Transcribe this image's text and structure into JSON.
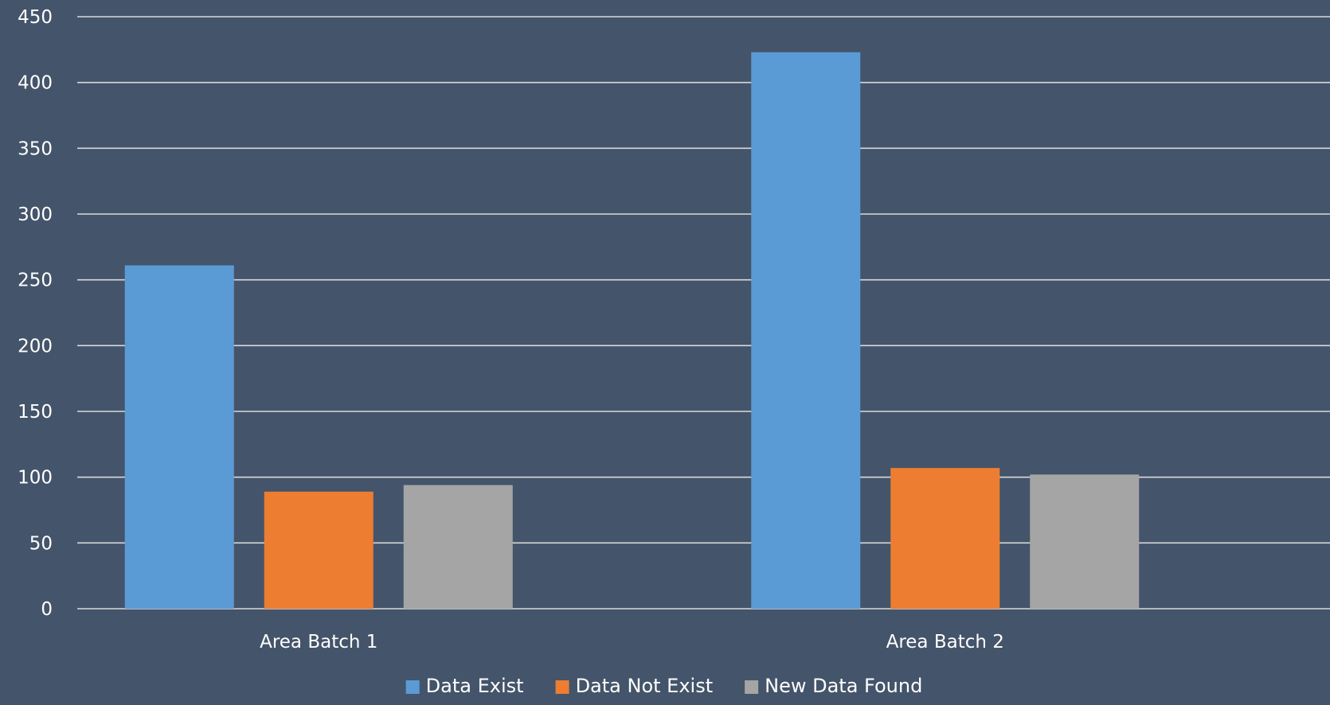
{
  "chart_data": {
    "type": "bar",
    "title": "",
    "xlabel": "",
    "ylabel": "",
    "ylim": [
      0,
      450
    ],
    "y_ticks": [
      0,
      50,
      100,
      150,
      200,
      250,
      300,
      350,
      400,
      450
    ],
    "grid": true,
    "legend_position": "bottom",
    "categories": [
      "Area Batch 1",
      "Area Batch 2"
    ],
    "series": [
      {
        "name": "Data Exist",
        "color": "#5b9bd5",
        "values": [
          261,
          423
        ]
      },
      {
        "name": "Data Not Exist",
        "color": "#ed7d31",
        "values": [
          89,
          107
        ]
      },
      {
        "name": "New Data Found",
        "color": "#a5a5a5",
        "values": [
          94,
          102
        ]
      }
    ]
  },
  "colors": {
    "background": "#44546a",
    "gridline": "#d9d9d9",
    "text": "#ffffff"
  }
}
